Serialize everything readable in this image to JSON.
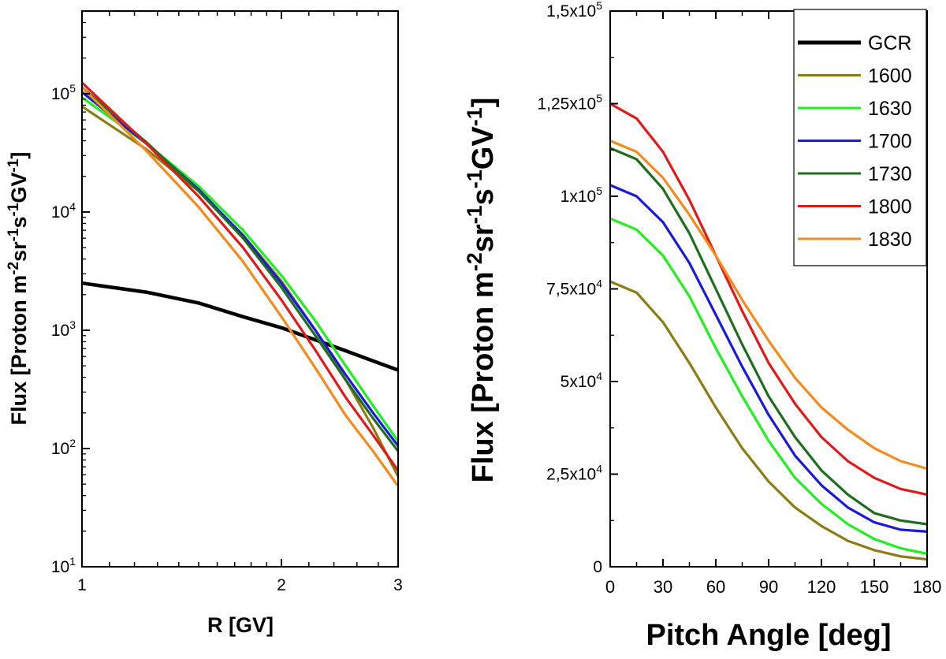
{
  "chart_data": [
    {
      "type": "line",
      "title": "",
      "xlabel": "R [GV]",
      "ylabel": "Flux [Proton m-2sr-1s-1GV-1]",
      "xscale": "log",
      "yscale": "log",
      "xlim": [
        1,
        3
      ],
      "ylim": [
        10,
        500000
      ],
      "xticks": [
        {
          "v": 1,
          "label": "1"
        },
        {
          "v": 2,
          "label": "2"
        },
        {
          "v": 3,
          "label": "3"
        }
      ],
      "yticks": [
        {
          "v": 10,
          "base": "10",
          "exp": "1"
        },
        {
          "v": 100,
          "base": "10",
          "exp": "2"
        },
        {
          "v": 1000,
          "base": "10",
          "exp": "3"
        },
        {
          "v": 10000,
          "base": "10",
          "exp": "4"
        },
        {
          "v": 100000,
          "base": "10",
          "exp": "5"
        }
      ],
      "grid": false,
      "series": [
        {
          "name": "GCR",
          "color": "#000000",
          "x": [
            1,
            1.25,
            1.5,
            1.75,
            2,
            2.25,
            2.5,
            2.75,
            3
          ],
          "y": [
            2500,
            2100,
            1700,
            1300,
            1050,
            830,
            670,
            550,
            460
          ]
        },
        {
          "name": "1600",
          "color": "#8b7d14",
          "x": [
            1,
            1.25,
            1.5,
            1.75,
            2,
            2.25,
            2.5,
            2.75,
            3
          ],
          "y": [
            78000,
            34000,
            15000,
            6400,
            2600,
            1000,
            380,
            150,
            58
          ]
        },
        {
          "name": "1630",
          "color": "#22ee22",
          "x": [
            1,
            1.25,
            1.5,
            1.75,
            2,
            2.25,
            2.5,
            2.75,
            3
          ],
          "y": [
            93000,
            38000,
            16500,
            7000,
            2900,
            1200,
            500,
            230,
            115
          ]
        },
        {
          "name": "1700",
          "color": "#1a1adc",
          "x": [
            1,
            1.25,
            1.5,
            1.75,
            2,
            2.25,
            2.5,
            2.75,
            3
          ],
          "y": [
            103000,
            38000,
            15500,
            6300,
            2500,
            1000,
            420,
            200,
            105
          ]
        },
        {
          "name": "1730",
          "color": "#1f6e1f",
          "x": [
            1,
            1.25,
            1.5,
            1.75,
            2,
            2.25,
            2.5,
            2.75,
            3
          ],
          "y": [
            113000,
            39000,
            15000,
            6000,
            2300,
            900,
            380,
            180,
            95
          ]
        },
        {
          "name": "1800",
          "color": "#e01a1a",
          "x": [
            1,
            1.25,
            1.5,
            1.75,
            2,
            2.25,
            2.5,
            2.75,
            3
          ],
          "y": [
            124000,
            38000,
            13500,
            5000,
            1800,
            680,
            270,
            130,
            65
          ]
        },
        {
          "name": "1830",
          "color": "#f58b1e",
          "x": [
            1,
            1.25,
            1.5,
            1.75,
            2,
            2.25,
            2.5,
            2.75,
            3
          ],
          "y": [
            113000,
            33000,
            11000,
            3800,
            1300,
            480,
            190,
            95,
            48
          ]
        }
      ]
    },
    {
      "type": "line",
      "title": "",
      "xlabel": "Pitch Angle [deg]",
      "ylabel": "Flux [Proton m-2sr-1s-1GV-1]",
      "xlim": [
        0,
        180
      ],
      "ylim": [
        0,
        150000
      ],
      "xticks": [
        0,
        30,
        60,
        90,
        120,
        150,
        180
      ],
      "yticks": [
        {
          "v": 0,
          "label": "0"
        },
        {
          "v": 25000,
          "label": "2,5x10",
          "exp": "4"
        },
        {
          "v": 50000,
          "label": "5x10",
          "exp": "4"
        },
        {
          "v": 75000,
          "label": "7,5x10",
          "exp": "4"
        },
        {
          "v": 100000,
          "label": "1x10",
          "exp": "5"
        },
        {
          "v": 125000,
          "label": "1,25x10",
          "exp": "5"
        },
        {
          "v": 150000,
          "label": "1,5x10",
          "exp": "5"
        }
      ],
      "grid": false,
      "legend_position": "top-right",
      "legend": [
        "GCR",
        "1600",
        "1630",
        "1700",
        "1730",
        "1800",
        "1830"
      ],
      "series": [
        {
          "name": "1600",
          "color": "#8b7d14",
          "x": [
            0,
            15,
            30,
            45,
            60,
            75,
            90,
            105,
            120,
            135,
            150,
            165,
            180
          ],
          "y": [
            77000,
            74000,
            66000,
            55000,
            43000,
            32000,
            23000,
            16000,
            11000,
            7000,
            4500,
            2800,
            2000
          ]
        },
        {
          "name": "1630",
          "color": "#22ee22",
          "x": [
            0,
            15,
            30,
            45,
            60,
            75,
            90,
            105,
            120,
            135,
            150,
            165,
            180
          ],
          "y": [
            94000,
            91000,
            84000,
            73000,
            59000,
            46000,
            34000,
            24000,
            17000,
            11500,
            7500,
            5000,
            3500
          ]
        },
        {
          "name": "1700",
          "color": "#1a1adc",
          "x": [
            0,
            15,
            30,
            45,
            60,
            75,
            90,
            105,
            120,
            135,
            150,
            165,
            180
          ],
          "y": [
            103000,
            100000,
            93000,
            82000,
            68000,
            54000,
            41000,
            30000,
            22000,
            16000,
            12000,
            10000,
            9500
          ]
        },
        {
          "name": "1730",
          "color": "#1f6e1f",
          "x": [
            0,
            15,
            30,
            45,
            60,
            75,
            90,
            105,
            120,
            135,
            150,
            165,
            180
          ],
          "y": [
            113000,
            110000,
            102000,
            90000,
            75000,
            60000,
            46000,
            35000,
            26000,
            19500,
            14500,
            12500,
            11500
          ]
        },
        {
          "name": "1800",
          "color": "#e01a1a",
          "x": [
            0,
            15,
            30,
            45,
            60,
            75,
            90,
            105,
            120,
            135,
            150,
            165,
            180
          ],
          "y": [
            125000,
            121000,
            112000,
            99000,
            84000,
            69000,
            55000,
            44000,
            35000,
            28500,
            24000,
            21000,
            19500
          ]
        },
        {
          "name": "1830",
          "color": "#f58b1e",
          "x": [
            0,
            15,
            30,
            45,
            60,
            75,
            90,
            105,
            120,
            135,
            150,
            165,
            180
          ],
          "y": [
            115000,
            112000,
            105000,
            95000,
            84000,
            72000,
            61000,
            51000,
            43000,
            37000,
            32000,
            28500,
            26500
          ]
        }
      ]
    }
  ]
}
